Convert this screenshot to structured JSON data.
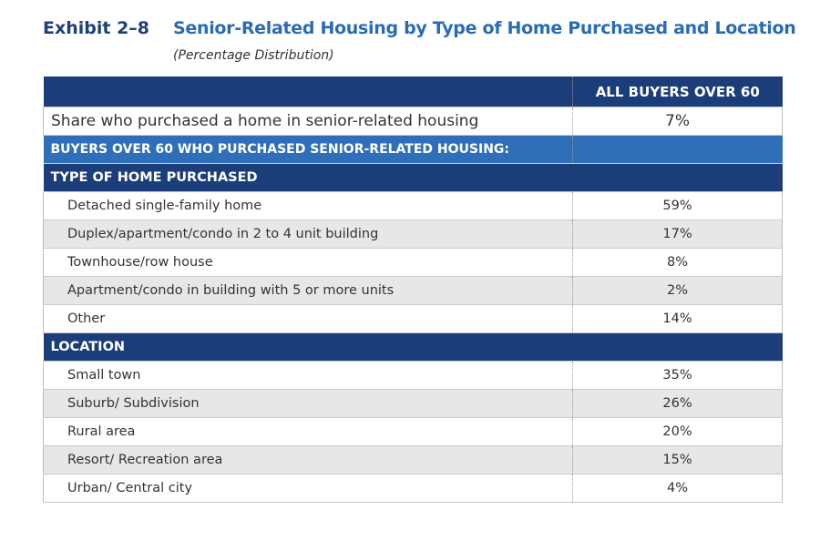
{
  "header": {
    "exhibit": "Exhibit 2–8",
    "title": "Senior-Related Housing by Type of Home Purchased and Location",
    "subtitle": "(Percentage Distribution)"
  },
  "table": {
    "column_header": "ALL BUYERS OVER 60",
    "share_row": [
      "Share who purchased a home in senior-related housing",
      "7%"
    ],
    "section": "BUYERS OVER 60 WHO PURCHASED SENIOR-RELATED HOUSING:",
    "groups": [
      {
        "title": "TYPE OF HOME PURCHASED",
        "rows": [
          [
            "Detached single-family home",
            "59%"
          ],
          [
            "Duplex/apartment/condo in 2 to 4 unit building",
            "17%"
          ],
          [
            "Townhouse/row house",
            "8%"
          ],
          [
            "Apartment/condo in building with 5 or more units",
            "2%"
          ],
          [
            "Other",
            "14%"
          ]
        ]
      },
      {
        "title": "LOCATION",
        "rows": [
          [
            "Small town",
            "35%"
          ],
          [
            "Suburb/ Subdivision",
            "26%"
          ],
          [
            "Rural area",
            "20%"
          ],
          [
            "Resort/ Recreation  area",
            "15%"
          ],
          [
            "Urban/ Central city",
            "4%"
          ]
        ]
      }
    ]
  }
}
